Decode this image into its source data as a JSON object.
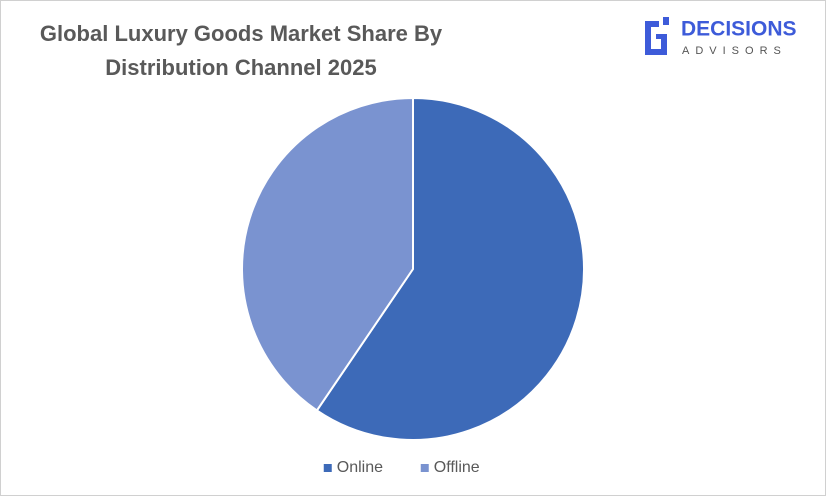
{
  "chart_data": {
    "type": "pie",
    "title": "Global Luxury Goods Market Share By Distribution Channel 2025",
    "categories": [
      "Online",
      "Offline"
    ],
    "values": [
      59.5,
      40.5
    ],
    "colors": [
      "#3d6ab8",
      "#7a93d0"
    ],
    "legend": "bottom"
  },
  "logo": {
    "name": "DECISIONS",
    "tagline": "ADVISORS"
  }
}
